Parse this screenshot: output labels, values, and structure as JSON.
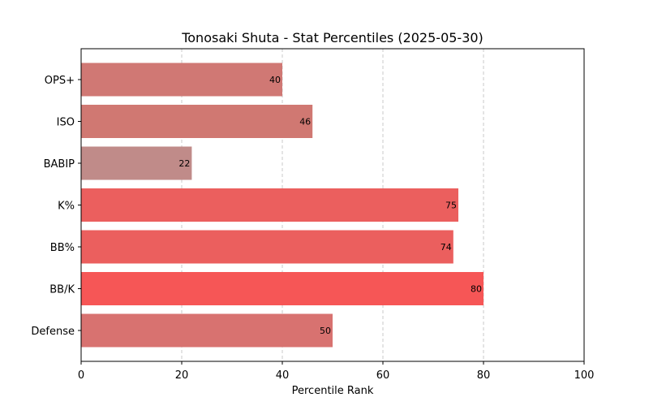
{
  "chart_data": {
    "type": "bar",
    "orientation": "horizontal",
    "title": "Tonosaki Shuta - Stat Percentiles (2025-05-30)",
    "xlabel": "Percentile Rank",
    "ylabel": "",
    "xlim": [
      0,
      100
    ],
    "xticks": [
      0,
      20,
      40,
      60,
      80,
      100
    ],
    "grid": "x-dashed",
    "categories": [
      "OPS+",
      "ISO",
      "BABIP",
      "K%",
      "BB%",
      "BB/K",
      "Defense"
    ],
    "values": [
      40,
      46,
      22,
      75,
      74,
      80,
      50
    ],
    "colors": [
      "#d07874",
      "#d07872",
      "#c08b89",
      "#eb5f5e",
      "#eb5f5e",
      "#f65656",
      "#d87270"
    ]
  }
}
